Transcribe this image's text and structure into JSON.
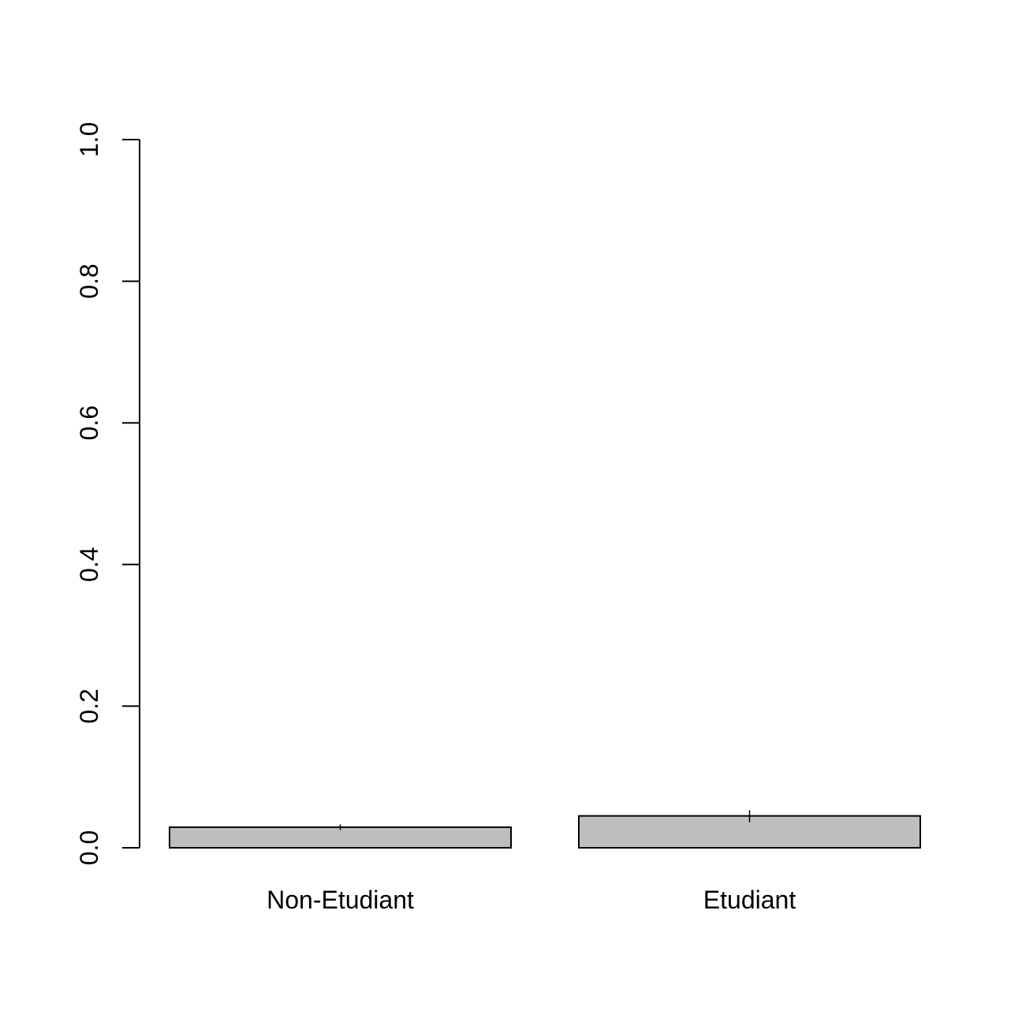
{
  "chart_data": {
    "type": "bar",
    "title": "",
    "xlabel": "",
    "ylabel": "",
    "categories": [
      "Non-Etudiant",
      "Etudiant"
    ],
    "values": [
      0.029,
      0.045
    ],
    "error_bars": [
      {
        "low": 0.025,
        "high": 0.033
      },
      {
        "low": 0.036,
        "high": 0.053
      }
    ],
    "ylim": [
      0,
      1
    ],
    "yticks": [
      "0.0",
      "0.2",
      "0.4",
      "0.6",
      "0.8",
      "1.0"
    ],
    "grid": false,
    "legend": "none",
    "colors": {
      "bar_fill": "#bebebe",
      "bar_stroke": "#000000",
      "axis": "#000000"
    }
  }
}
